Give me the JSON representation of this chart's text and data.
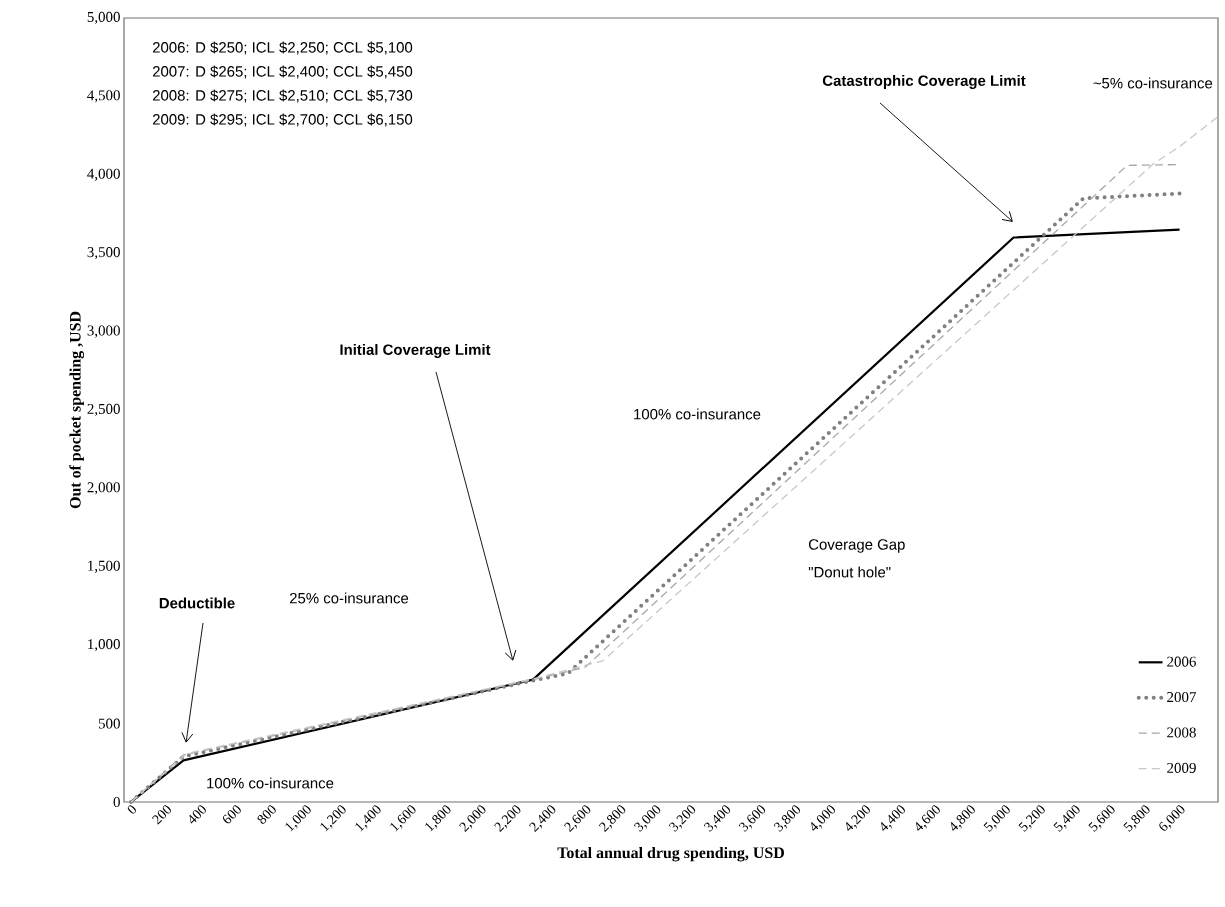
{
  "chart_data": {
    "type": "line",
    "xlabel": "Total annual drug spending, USD",
    "ylabel": "Out of pocket spending ,USD",
    "xlim": [
      -40,
      6220
    ],
    "ylim": [
      0,
      5000
    ],
    "xticks": [
      0,
      200,
      400,
      600,
      800,
      {
        "value": 1000,
        "label": "1,000"
      },
      {
        "value": 1200,
        "label": "1,200"
      },
      {
        "value": 1400,
        "label": "1,400"
      },
      {
        "value": 1600,
        "label": "1,600"
      },
      {
        "value": 1800,
        "label": "1,800"
      },
      {
        "value": 2000,
        "label": "2,000"
      },
      {
        "value": 2200,
        "label": "2,200"
      },
      {
        "value": 2400,
        "label": "2,400"
      },
      {
        "value": 2600,
        "label": "2,600"
      },
      {
        "value": 2800,
        "label": "2,800"
      },
      {
        "value": 3000,
        "label": "3,000"
      },
      {
        "value": 3200,
        "label": "3,200"
      },
      {
        "value": 3400,
        "label": "3,400"
      },
      {
        "value": 3600,
        "label": "3,600"
      },
      {
        "value": 3800,
        "label": "3,800"
      },
      {
        "value": 4000,
        "label": "4,000"
      },
      {
        "value": 4200,
        "label": "4,200"
      },
      {
        "value": 4400,
        "label": "4,400"
      },
      {
        "value": 4600,
        "label": "4,600"
      },
      {
        "value": 4800,
        "label": "4,800"
      },
      {
        "value": 5000,
        "label": "5,000"
      },
      {
        "value": 5200,
        "label": "5,200"
      },
      {
        "value": 5400,
        "label": "5,400"
      },
      {
        "value": 5600,
        "label": "5,600"
      },
      {
        "value": 5800,
        "label": "5,800"
      },
      {
        "value": 6000,
        "label": "6,000"
      }
    ],
    "yticks": [
      0,
      500,
      {
        "value": 1000,
        "label": "1,000"
      },
      {
        "value": 1500,
        "label": "1,500"
      },
      {
        "value": 2000,
        "label": "2,000"
      },
      {
        "value": 2500,
        "label": "2,500"
      },
      {
        "value": 3000,
        "label": "3,000"
      },
      {
        "value": 3500,
        "label": "3,500"
      },
      {
        "value": 4000,
        "label": "4,000"
      },
      {
        "value": 4500,
        "label": "4,500"
      },
      {
        "value": 5000,
        "label": "5,000"
      }
    ],
    "grid": false,
    "legend": "bottom right",
    "marker": "none",
    "series": [
      {
        "name": "2006",
        "color": "#000000",
        "line_style": "solid",
        "x": [
          0,
          300,
          2300,
          5050,
          6000
        ],
        "values": [
          0,
          265,
          780,
          3600,
          3650
        ]
      },
      {
        "name": "2007",
        "color": "#808080",
        "line_style": "dotted",
        "x": [
          0,
          300,
          2300,
          2500,
          5450,
          6000
        ],
        "values": [
          0,
          290,
          775,
          820,
          3850,
          3880
        ]
      },
      {
        "name": "2008",
        "color": "#a6a6a6",
        "line_style": "dashed",
        "x": [
          0,
          300,
          2300,
          2600,
          5700,
          6000
        ],
        "values": [
          0,
          300,
          780,
          860,
          4060,
          4065
        ]
      },
      {
        "name": "2009",
        "color": "#c8c8c8",
        "line_style": "dashed",
        "x": [
          0,
          320,
          2300,
          2700,
          5850,
          6000,
          6220
        ],
        "values": [
          0,
          310,
          785,
          900,
          4070,
          4180,
          4370
        ]
      }
    ],
    "annotations": [
      "2006: D $250; ICL $2,250; CCL $5,100",
      "2007: D $265; ICL $2,400; CCL $5,450",
      "2008: D $275; ICL $2,510; CCL $5,730",
      "2009: D $295; ICL $2,700; CCL $6,150",
      "~5% co-insurance",
      "Catastrophic Coverage Limit",
      "100% co-insurance",
      "Coverage Gap",
      "\"Donut hole\"",
      "Initial Coverage Limit",
      "25% co-insurance",
      "Deductible",
      "100% co-insurance"
    ]
  }
}
